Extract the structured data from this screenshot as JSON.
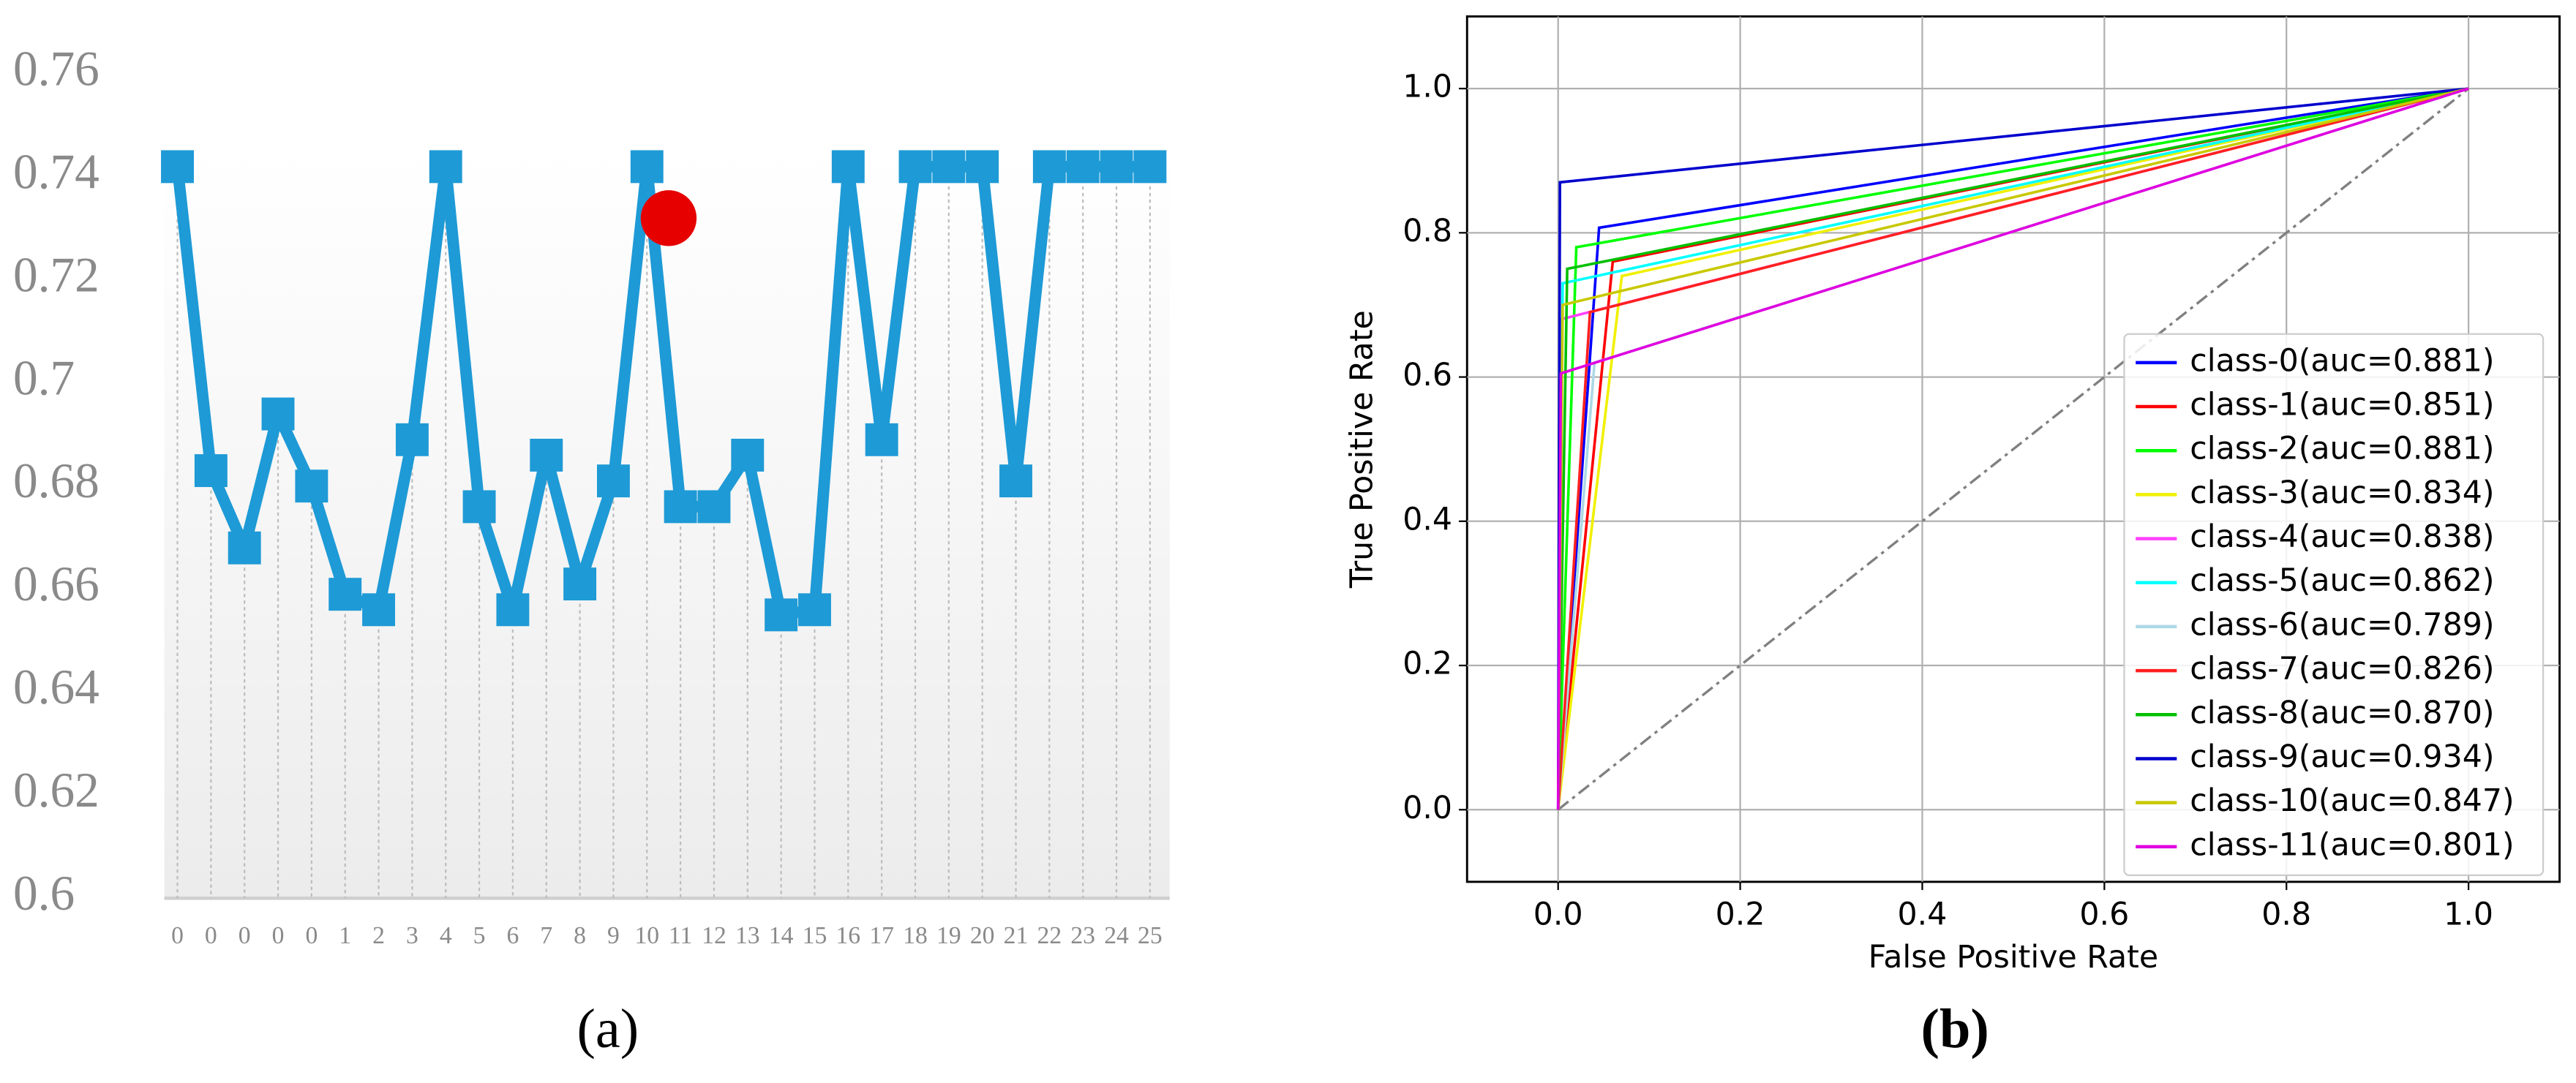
{
  "chart_data": [
    {
      "type": "line",
      "caption": "(a)",
      "categories": [
        "0",
        "0",
        "0",
        "0",
        "0",
        "1",
        "2",
        "3",
        "4",
        "5",
        "6",
        "7",
        "8",
        "9",
        "10",
        "11",
        "12",
        "13",
        "14",
        "15",
        "16",
        "17",
        "18",
        "19",
        "20",
        "21",
        "22",
        "23",
        "24",
        "25"
      ],
      "values": [
        0.742,
        0.683,
        0.668,
        0.694,
        0.68,
        0.659,
        0.656,
        0.689,
        0.742,
        0.676,
        0.656,
        0.686,
        0.661,
        0.681,
        0.742,
        0.676,
        0.676,
        0.686,
        0.655,
        0.656,
        0.742,
        0.689,
        0.742,
        0.742,
        0.742,
        0.681,
        0.742,
        0.742,
        0.742,
        0.742
      ],
      "color": "#1e9ad6",
      "highlight": {
        "value": 0.732,
        "color": "#e60000"
      },
      "ylim": [
        0.6,
        0.76
      ],
      "yticks": [
        0.6,
        0.62,
        0.64,
        0.66,
        0.68,
        0.7,
        0.72,
        0.74,
        0.76
      ]
    },
    {
      "type": "line",
      "caption": "(b)",
      "xlabel": "False Positive Rate",
      "ylabel": "True Positive Rate",
      "xlim": [
        -0.1,
        1.1
      ],
      "ylim": [
        -0.1,
        1.1
      ],
      "xticks": [
        {
          "value": 0,
          "label": "0.0"
        },
        {
          "value": 0.2,
          "label": "0.2"
        },
        {
          "value": 0.4,
          "label": "0.4"
        },
        {
          "value": 0.6,
          "label": "0.6"
        },
        {
          "value": 0.8,
          "label": "0.8"
        },
        {
          "value": 1,
          "label": "1.0"
        }
      ],
      "yticks": [
        {
          "value": 0,
          "label": "0.0"
        },
        {
          "value": 0.2,
          "label": "0.2"
        },
        {
          "value": 0.4,
          "label": "0.4"
        },
        {
          "value": 0.6,
          "label": "0.6"
        },
        {
          "value": 0.8,
          "label": "0.8"
        },
        {
          "value": 1,
          "label": "1.0"
        }
      ],
      "grid": true,
      "legend": "lower right",
      "reference": {
        "color": "#808080",
        "x": [
          0,
          1
        ],
        "values": [
          0,
          1
        ]
      },
      "series": [
        {
          "name": "class-0(auc=0.881)",
          "color": "#0000ff",
          "x": [
            0,
            0.045,
            1
          ],
          "values": [
            0,
            0.807,
            1
          ]
        },
        {
          "name": "class-1(auc=0.851)",
          "color": "#ff0000",
          "x": [
            0,
            0.06,
            1
          ],
          "values": [
            0,
            0.76,
            1
          ]
        },
        {
          "name": "class-2(auc=0.881)",
          "color": "#00ff00",
          "x": [
            0,
            0.02,
            1
          ],
          "values": [
            0,
            0.78,
            1
          ]
        },
        {
          "name": "class-3(auc=0.834)",
          "color": "#f0f000",
          "x": [
            0,
            0.07,
            1
          ],
          "values": [
            0,
            0.74,
            1
          ]
        },
        {
          "name": "class-4(auc=0.838)",
          "color": "#ff40ff",
          "x": [
            0,
            0.003,
            1
          ],
          "values": [
            0,
            0.68,
            1
          ]
        },
        {
          "name": "class-5(auc=0.862)",
          "color": "#00ffff",
          "x": [
            0,
            0.005,
            1
          ],
          "values": [
            0,
            0.73,
            1
          ]
        },
        {
          "name": "class-6(auc=0.789)",
          "color": "#add8e6",
          "x": [
            0,
            0.04,
            1
          ],
          "values": [
            0,
            0.62,
            1
          ]
        },
        {
          "name": "class-7(auc=0.826)",
          "color": "#ff2020",
          "x": [
            0,
            0.035,
            1
          ],
          "values": [
            0,
            0.69,
            1
          ]
        },
        {
          "name": "class-8(auc=0.870)",
          "color": "#00c000",
          "x": [
            0,
            0.01,
            1
          ],
          "values": [
            0,
            0.75,
            1
          ]
        },
        {
          "name": "class-9(auc=0.934)",
          "color": "#0000cd",
          "x": [
            0,
            0.002,
            1
          ],
          "values": [
            0,
            0.87,
            1
          ]
        },
        {
          "name": "class-10(auc=0.847)",
          "color": "#c8c800",
          "x": [
            0,
            0.005,
            1
          ],
          "values": [
            0,
            0.7,
            1
          ]
        },
        {
          "name": "class-11(auc=0.801)",
          "color": "#e000e0",
          "x": [
            0,
            0.003,
            1
          ],
          "values": [
            0,
            0.605,
            1
          ]
        }
      ]
    }
  ]
}
